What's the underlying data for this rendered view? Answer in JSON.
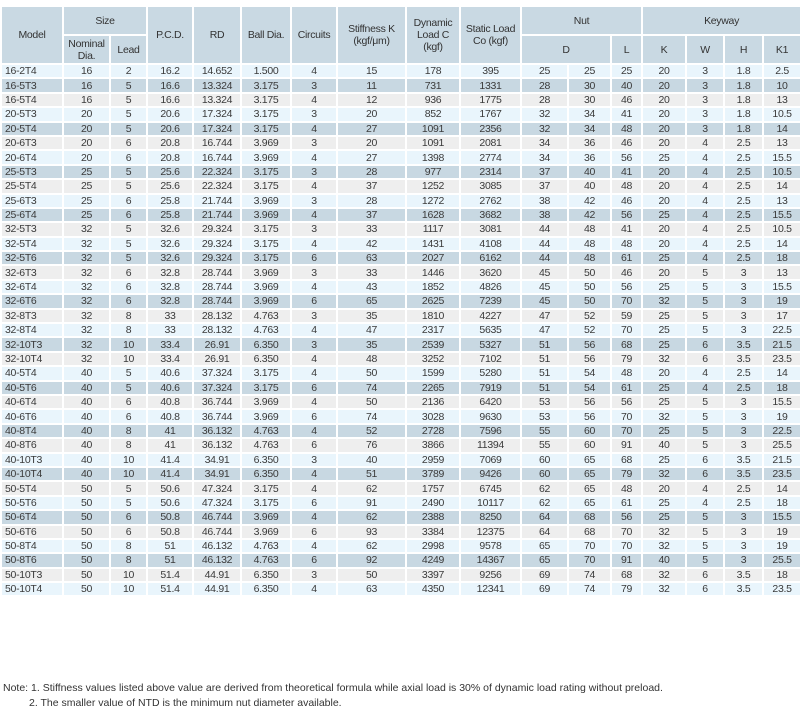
{
  "table": {
    "headers": {
      "model": "Model",
      "size": "Size",
      "nominal_dia": "Nominal Dia.",
      "lead": "Lead",
      "pcd": "P.C.D.",
      "rd": "RD",
      "ball_dia": "Ball Dia.",
      "circuits": "Circuits",
      "stiffness": "Stiffness K (kgf/μm)",
      "dynamic_load": "Dynamic Load C (kgf)",
      "static_load": "Static Load Co (kgf)",
      "nut": "Nut",
      "nut_d": "D",
      "nut_l": "L",
      "keyway": "Keyway",
      "k": "K",
      "w": "W",
      "h": "H",
      "k1": "K1"
    },
    "rows": [
      [
        "16-2T4",
        "16",
        "2",
        "16.2",
        "14.652",
        "1.500",
        "4",
        "15",
        "178",
        "395",
        "25",
        "25",
        "25",
        "20",
        "3",
        "1.8",
        "2.5"
      ],
      [
        "16-5T3",
        "16",
        "5",
        "16.6",
        "13.324",
        "3.175",
        "3",
        "11",
        "731",
        "1331",
        "28",
        "30",
        "40",
        "20",
        "3",
        "1.8",
        "10"
      ],
      [
        "16-5T4",
        "16",
        "5",
        "16.6",
        "13.324",
        "3.175",
        "4",
        "12",
        "936",
        "1775",
        "28",
        "30",
        "46",
        "20",
        "3",
        "1.8",
        "13"
      ],
      [
        "20-5T3",
        "20",
        "5",
        "20.6",
        "17.324",
        "3.175",
        "3",
        "20",
        "852",
        "1767",
        "32",
        "34",
        "41",
        "20",
        "3",
        "1.8",
        "10.5"
      ],
      [
        "20-5T4",
        "20",
        "5",
        "20.6",
        "17.324",
        "3.175",
        "4",
        "27",
        "1091",
        "2356",
        "32",
        "34",
        "48",
        "20",
        "3",
        "1.8",
        "14"
      ],
      [
        "20-6T3",
        "20",
        "6",
        "20.8",
        "16.744",
        "3.969",
        "3",
        "20",
        "1091",
        "2081",
        "34",
        "36",
        "46",
        "20",
        "4",
        "2.5",
        "13"
      ],
      [
        "20-6T4",
        "20",
        "6",
        "20.8",
        "16.744",
        "3.969",
        "4",
        "27",
        "1398",
        "2774",
        "34",
        "36",
        "56",
        "25",
        "4",
        "2.5",
        "15.5"
      ],
      [
        "25-5T3",
        "25",
        "5",
        "25.6",
        "22.324",
        "3.175",
        "3",
        "28",
        "977",
        "2314",
        "37",
        "40",
        "41",
        "20",
        "4",
        "2.5",
        "10.5"
      ],
      [
        "25-5T4",
        "25",
        "5",
        "25.6",
        "22.324",
        "3.175",
        "4",
        "37",
        "1252",
        "3085",
        "37",
        "40",
        "48",
        "20",
        "4",
        "2.5",
        "14"
      ],
      [
        "25-6T3",
        "25",
        "6",
        "25.8",
        "21.744",
        "3.969",
        "3",
        "28",
        "1272",
        "2762",
        "38",
        "42",
        "46",
        "20",
        "4",
        "2.5",
        "13"
      ],
      [
        "25-6T4",
        "25",
        "6",
        "25.8",
        "21.744",
        "3.969",
        "4",
        "37",
        "1628",
        "3682",
        "38",
        "42",
        "56",
        "25",
        "4",
        "2.5",
        "15.5"
      ],
      [
        "32-5T3",
        "32",
        "5",
        "32.6",
        "29.324",
        "3.175",
        "3",
        "33",
        "1117",
        "3081",
        "44",
        "48",
        "41",
        "20",
        "4",
        "2.5",
        "10.5"
      ],
      [
        "32-5T4",
        "32",
        "5",
        "32.6",
        "29.324",
        "3.175",
        "4",
        "42",
        "1431",
        "4108",
        "44",
        "48",
        "48",
        "20",
        "4",
        "2.5",
        "14"
      ],
      [
        "32-5T6",
        "32",
        "5",
        "32.6",
        "29.324",
        "3.175",
        "6",
        "63",
        "2027",
        "6162",
        "44",
        "48",
        "61",
        "25",
        "4",
        "2.5",
        "18"
      ],
      [
        "32-6T3",
        "32",
        "6",
        "32.8",
        "28.744",
        "3.969",
        "3",
        "33",
        "1446",
        "3620",
        "45",
        "50",
        "46",
        "20",
        "5",
        "3",
        "13"
      ],
      [
        "32-6T4",
        "32",
        "6",
        "32.8",
        "28.744",
        "3.969",
        "4",
        "43",
        "1852",
        "4826",
        "45",
        "50",
        "56",
        "25",
        "5",
        "3",
        "15.5"
      ],
      [
        "32-6T6",
        "32",
        "6",
        "32.8",
        "28.744",
        "3.969",
        "6",
        "65",
        "2625",
        "7239",
        "45",
        "50",
        "70",
        "32",
        "5",
        "3",
        "19"
      ],
      [
        "32-8T3",
        "32",
        "8",
        "33",
        "28.132",
        "4.763",
        "3",
        "35",
        "1810",
        "4227",
        "47",
        "52",
        "59",
        "25",
        "5",
        "3",
        "17"
      ],
      [
        "32-8T4",
        "32",
        "8",
        "33",
        "28.132",
        "4.763",
        "4",
        "47",
        "2317",
        "5635",
        "47",
        "52",
        "70",
        "25",
        "5",
        "3",
        "22.5"
      ],
      [
        "32-10T3",
        "32",
        "10",
        "33.4",
        "26.91",
        "6.350",
        "3",
        "35",
        "2539",
        "5327",
        "51",
        "56",
        "68",
        "25",
        "6",
        "3.5",
        "21.5"
      ],
      [
        "32-10T4",
        "32",
        "10",
        "33.4",
        "26.91",
        "6.350",
        "4",
        "48",
        "3252",
        "7102",
        "51",
        "56",
        "79",
        "32",
        "6",
        "3.5",
        "23.5"
      ],
      [
        "40-5T4",
        "40",
        "5",
        "40.6",
        "37.324",
        "3.175",
        "4",
        "50",
        "1599",
        "5280",
        "51",
        "54",
        "48",
        "20",
        "4",
        "2.5",
        "14"
      ],
      [
        "40-5T6",
        "40",
        "5",
        "40.6",
        "37.324",
        "3.175",
        "6",
        "74",
        "2265",
        "7919",
        "51",
        "54",
        "61",
        "25",
        "4",
        "2.5",
        "18"
      ],
      [
        "40-6T4",
        "40",
        "6",
        "40.8",
        "36.744",
        "3.969",
        "4",
        "50",
        "2136",
        "6420",
        "53",
        "56",
        "56",
        "25",
        "5",
        "3",
        "15.5"
      ],
      [
        "40-6T6",
        "40",
        "6",
        "40.8",
        "36.744",
        "3.969",
        "6",
        "74",
        "3028",
        "9630",
        "53",
        "56",
        "70",
        "32",
        "5",
        "3",
        "19"
      ],
      [
        "40-8T4",
        "40",
        "8",
        "41",
        "36.132",
        "4.763",
        "4",
        "52",
        "2728",
        "7596",
        "55",
        "60",
        "70",
        "25",
        "5",
        "3",
        "22.5"
      ],
      [
        "40-8T6",
        "40",
        "8",
        "41",
        "36.132",
        "4.763",
        "6",
        "76",
        "3866",
        "11394",
        "55",
        "60",
        "91",
        "40",
        "5",
        "3",
        "25.5"
      ],
      [
        "40-10T3",
        "40",
        "10",
        "41.4",
        "34.91",
        "6.350",
        "3",
        "40",
        "2959",
        "7069",
        "60",
        "65",
        "68",
        "25",
        "6",
        "3.5",
        "21.5"
      ],
      [
        "40-10T4",
        "40",
        "10",
        "41.4",
        "34.91",
        "6.350",
        "4",
        "51",
        "3789",
        "9426",
        "60",
        "65",
        "79",
        "32",
        "6",
        "3.5",
        "23.5"
      ],
      [
        "50-5T4",
        "50",
        "5",
        "50.6",
        "47.324",
        "3.175",
        "4",
        "62",
        "1757",
        "6745",
        "62",
        "65",
        "48",
        "20",
        "4",
        "2.5",
        "14"
      ],
      [
        "50-5T6",
        "50",
        "5",
        "50.6",
        "47.324",
        "3.175",
        "6",
        "91",
        "2490",
        "10117",
        "62",
        "65",
        "61",
        "25",
        "4",
        "2.5",
        "18"
      ],
      [
        "50-6T4",
        "50",
        "6",
        "50.8",
        "46.744",
        "3.969",
        "4",
        "62",
        "2388",
        "8250",
        "64",
        "68",
        "56",
        "25",
        "5",
        "3",
        "15.5"
      ],
      [
        "50-6T6",
        "50",
        "6",
        "50.8",
        "46.744",
        "3.969",
        "6",
        "93",
        "3384",
        "12375",
        "64",
        "68",
        "70",
        "32",
        "5",
        "3",
        "19"
      ],
      [
        "50-8T4",
        "50",
        "8",
        "51",
        "46.132",
        "4.763",
        "4",
        "62",
        "2998",
        "9578",
        "65",
        "70",
        "70",
        "32",
        "5",
        "3",
        "19"
      ],
      [
        "50-8T6",
        "50",
        "8",
        "51",
        "46.132",
        "4.763",
        "6",
        "92",
        "4249",
        "14367",
        "65",
        "70",
        "91",
        "40",
        "5",
        "3",
        "25.5"
      ],
      [
        "50-10T3",
        "50",
        "10",
        "51.4",
        "44.91",
        "6.350",
        "3",
        "50",
        "3397",
        "9256",
        "69",
        "74",
        "68",
        "32",
        "6",
        "3.5",
        "18"
      ],
      [
        "50-10T4",
        "50",
        "10",
        "51.4",
        "44.91",
        "6.350",
        "4",
        "63",
        "4350",
        "12341",
        "69",
        "74",
        "79",
        "32",
        "6",
        "3.5",
        "23.5"
      ]
    ]
  },
  "notes": {
    "note1": "Note: 1. Stiffness values listed above value are derived from theoretical formula while axial load is 30% of dynamic load rating without preload.",
    "note2": "2. The smaller value of NTD is the minimum nut diameter available."
  },
  "colors": {
    "header": "#c9d9e3",
    "row_light_blue": "#e9f5fc",
    "row_dark": "#c8d8e2",
    "row_grey": "#eeeeee"
  }
}
